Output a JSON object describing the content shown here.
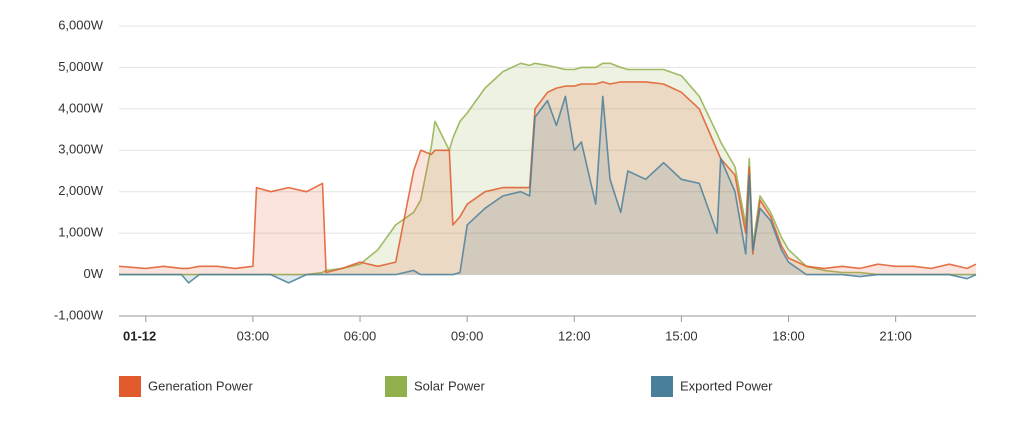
{
  "chart_data": {
    "type": "area",
    "x": [
      -0.75,
      0,
      0.5,
      1,
      1.2,
      1.5,
      2,
      2.5,
      3,
      3.1,
      3.5,
      4,
      4.5,
      4.95,
      5.05,
      5.5,
      6,
      6.5,
      7,
      7.5,
      7.7,
      8,
      8.1,
      8.5,
      8.6,
      8.8,
      9,
      9.5,
      10,
      10.5,
      10.75,
      10.9,
      11.25,
      11.5,
      11.75,
      12,
      12.2,
      12.6,
      12.8,
      13,
      13.3,
      13.5,
      14,
      14.5,
      15,
      15.5,
      16,
      16.1,
      16.5,
      16.8,
      16.9,
      17,
      17.2,
      17.5,
      17.8,
      18,
      18.5,
      19,
      19.5,
      20,
      20.5,
      21,
      21.5,
      22,
      22.5,
      23,
      23.25
    ],
    "series": [
      {
        "name": "Solar Power",
        "color": "#8fb04c",
        "values": [
          0,
          0,
          0,
          0,
          0,
          0,
          0,
          0,
          0,
          0,
          0,
          0,
          0,
          50,
          100,
          150,
          250,
          600,
          1200,
          1500,
          1800,
          3100,
          3700,
          3000,
          3300,
          3700,
          3900,
          4500,
          4900,
          5100,
          5050,
          5100,
          5050,
          5000,
          4950,
          4950,
          5000,
          5000,
          5100,
          5100,
          5000,
          4950,
          4950,
          4950,
          4800,
          4300,
          3400,
          3200,
          2600,
          1200,
          2800,
          700,
          1900,
          1500,
          900,
          600,
          200,
          100,
          50,
          50,
          0,
          0,
          0,
          0,
          0,
          0,
          0
        ]
      },
      {
        "name": "Generation Power",
        "color": "#e05a2b",
        "values": [
          200,
          150,
          200,
          150,
          150,
          200,
          200,
          150,
          200,
          2100,
          2000,
          2100,
          2000,
          2200,
          50,
          150,
          300,
          200,
          300,
          2500,
          3000,
          2900,
          3000,
          3000,
          1200,
          1400,
          1700,
          2000,
          2100,
          2100,
          2100,
          4000,
          4400,
          4500,
          4550,
          4550,
          4600,
          4600,
          4650,
          4600,
          4650,
          4650,
          4650,
          4600,
          4400,
          4000,
          3000,
          2800,
          2400,
          1000,
          2600,
          500,
          1800,
          1400,
          700,
          400,
          200,
          150,
          200,
          150,
          250,
          200,
          200,
          150,
          250,
          150,
          250
        ]
      },
      {
        "name": "Exported Power",
        "color": "#4a7f9b",
        "values": [
          0,
          0,
          0,
          0,
          -200,
          0,
          0,
          0,
          0,
          0,
          0,
          -200,
          0,
          0,
          0,
          0,
          0,
          0,
          0,
          100,
          0,
          0,
          0,
          0,
          0,
          50,
          1200,
          1600,
          1900,
          2000,
          1900,
          3800,
          4200,
          3600,
          4300,
          3000,
          3200,
          1700,
          4300,
          2300,
          1500,
          2500,
          2300,
          2700,
          2300,
          2200,
          1000,
          2800,
          2000,
          500,
          2400,
          600,
          1600,
          1300,
          600,
          300,
          0,
          0,
          0,
          -50,
          0,
          0,
          0,
          0,
          0,
          -100,
          0
        ]
      }
    ],
    "legend_order": [
      1,
      0,
      2
    ],
    "xlim": [
      -0.75,
      23.25
    ],
    "xticks": [
      {
        "value": 0,
        "label": "01-12"
      },
      {
        "value": 3,
        "label": "03:00"
      },
      {
        "value": 6,
        "label": "06:00"
      },
      {
        "value": 9,
        "label": "09:00"
      },
      {
        "value": 12,
        "label": "12:00"
      },
      {
        "value": 15,
        "label": "15:00"
      },
      {
        "value": 18,
        "label": "18:00"
      },
      {
        "value": 21,
        "label": "21:00"
      }
    ],
    "ylim": [
      -1000,
      6000
    ],
    "yticks": [
      {
        "value": -1000,
        "label": "-1,000W"
      },
      {
        "value": 0,
        "label": "0W"
      },
      {
        "value": 1000,
        "label": "1,000W"
      },
      {
        "value": 2000,
        "label": "2,000W"
      },
      {
        "value": 3000,
        "label": "3,000W"
      },
      {
        "value": 4000,
        "label": "4,000W"
      },
      {
        "value": 5000,
        "label": "5,000W"
      },
      {
        "value": 6000,
        "label": "6,000W"
      }
    ],
    "grid": true,
    "legend": "bottom"
  }
}
